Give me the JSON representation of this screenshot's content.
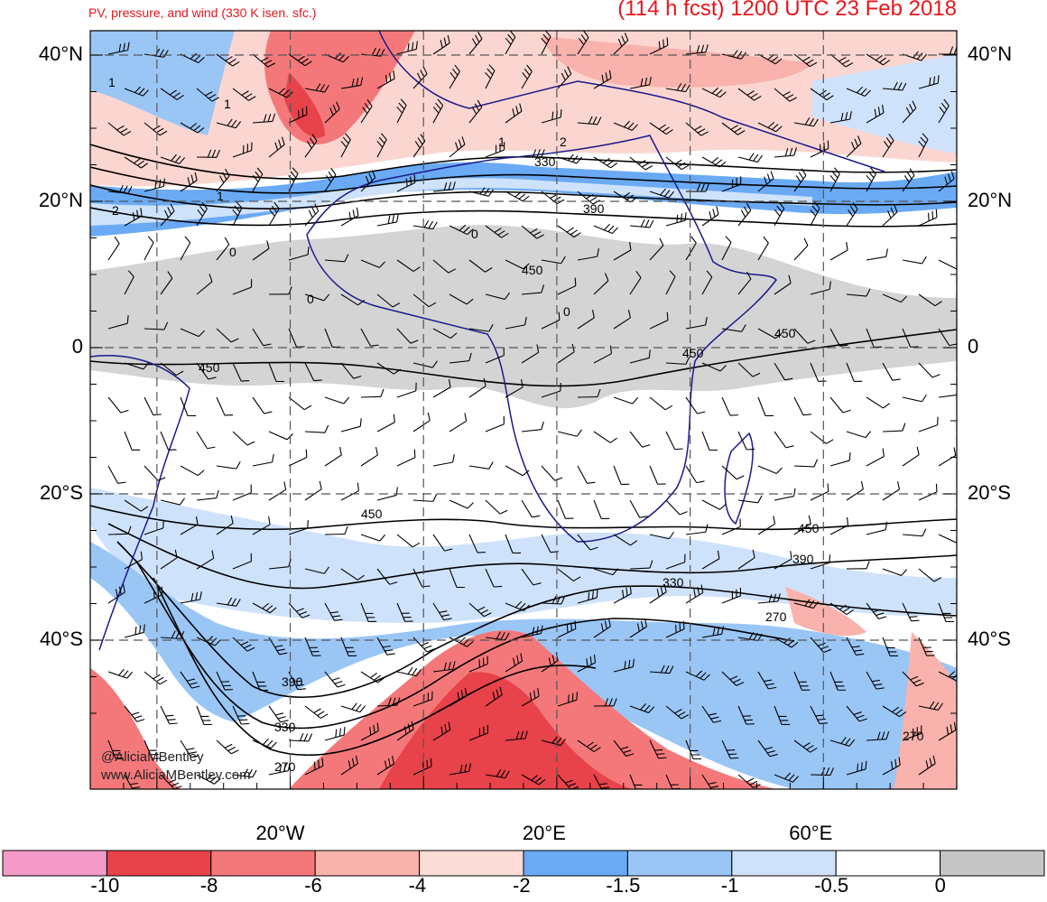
{
  "header": {
    "left_title": "PV, pressure, and wind (330 K isen. sfc.)",
    "right_title": "(114 h fcst) 1200 UTC 23 Feb 2018"
  },
  "axes": {
    "lat_ticks": [
      {
        "lat": 40,
        "label": "40°N"
      },
      {
        "lat": 20,
        "label": "20°N"
      },
      {
        "lat": 0,
        "label": "0"
      },
      {
        "lat": -20,
        "label": "20°S"
      },
      {
        "lat": -40,
        "label": "40°S"
      }
    ],
    "lon_ticks": [
      {
        "lon": -20,
        "label": "20°W"
      },
      {
        "lon": 20,
        "label": "20°E"
      },
      {
        "lon": 60,
        "label": "60°E"
      }
    ]
  },
  "contours": {
    "pv_labels": [
      "1",
      "1",
      "1",
      "2",
      "2",
      "1",
      "0",
      "0",
      "0",
      "0"
    ],
    "pressure_labels": [
      "330",
      "390",
      "450",
      "450",
      "450",
      "450",
      "450",
      "450",
      "390",
      "330",
      "270",
      "390",
      "330",
      "270",
      "270"
    ]
  },
  "colorbar": {
    "labels": [
      "-10",
      "-8",
      "-6",
      "-4",
      "-2",
      "-1.5",
      "-1",
      "-0.5",
      "0"
    ],
    "colors": [
      "#f49ac8",
      "#e8424a",
      "#f4787a",
      "#f9b2ac",
      "#fbdcd6",
      "#6aaaf4",
      "#9ac6f6",
      "#cfe2fb",
      "#ffffff",
      "#c6c6c6"
    ]
  },
  "credits": {
    "handle": "@AliciaMBentley",
    "site": "www.AliciaMBentley.com"
  }
}
